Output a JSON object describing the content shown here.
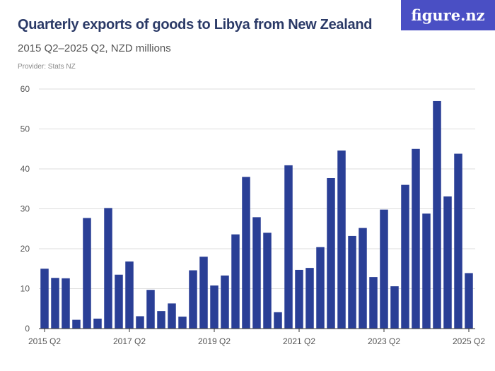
{
  "header": {
    "title": "Quarterly exports of goods to Libya from New Zealand",
    "subtitle": "2015 Q2–2025 Q2, NZD millions",
    "provider": "Provider: Stats NZ",
    "logo": "figure.nz"
  },
  "chart_data": {
    "type": "bar",
    "title": "Quarterly exports of goods to Libya from New Zealand",
    "subtitle": "2015 Q2–2025 Q2, NZD millions",
    "xlabel": "",
    "ylabel": "",
    "ylim": [
      0,
      60
    ],
    "yticks": [
      0,
      10,
      20,
      30,
      40,
      50,
      60
    ],
    "xtick_labels": [
      "2015 Q2",
      "2017 Q2",
      "2019 Q2",
      "2021 Q2",
      "2023 Q2",
      "2025 Q2"
    ],
    "grid": true,
    "color": "#2a3f96",
    "categories": [
      "2015 Q2",
      "2015 Q3",
      "2015 Q4",
      "2016 Q1",
      "2016 Q2",
      "2016 Q3",
      "2016 Q4",
      "2017 Q1",
      "2017 Q2",
      "2017 Q3",
      "2017 Q4",
      "2018 Q1",
      "2018 Q2",
      "2018 Q3",
      "2018 Q4",
      "2019 Q1",
      "2019 Q2",
      "2019 Q3",
      "2019 Q4",
      "2020 Q1",
      "2020 Q2",
      "2020 Q3",
      "2020 Q4",
      "2021 Q1",
      "2021 Q2",
      "2021 Q3",
      "2021 Q4",
      "2022 Q1",
      "2022 Q2",
      "2022 Q3",
      "2022 Q4",
      "2023 Q1",
      "2023 Q2",
      "2023 Q3",
      "2023 Q4",
      "2024 Q1",
      "2024 Q2",
      "2024 Q3",
      "2024 Q4",
      "2025 Q1",
      "2025 Q2"
    ],
    "values": [
      15.0,
      12.7,
      12.6,
      2.2,
      27.7,
      2.5,
      30.2,
      13.5,
      16.8,
      3.1,
      9.7,
      4.4,
      6.3,
      3.0,
      14.6,
      18.0,
      10.8,
      13.3,
      23.6,
      38.0,
      27.9,
      24.0,
      4.1,
      40.9,
      14.7,
      15.2,
      20.4,
      37.7,
      44.6,
      23.2,
      25.2,
      12.9,
      29.8,
      10.6,
      36.0,
      45.0,
      28.8,
      57.0,
      33.1,
      43.8,
      13.9
    ]
  }
}
